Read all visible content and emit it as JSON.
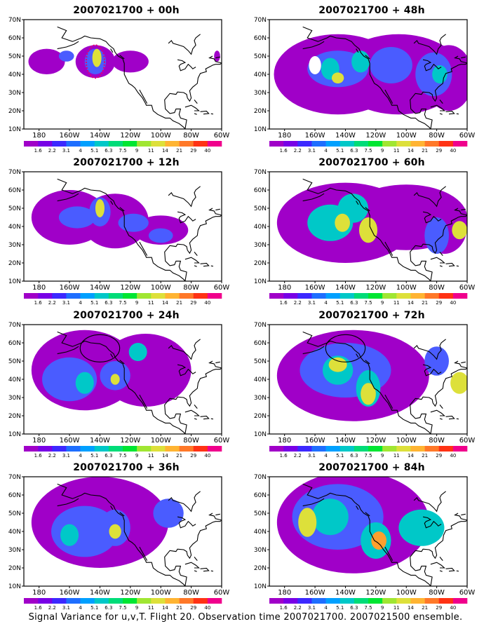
{
  "panels": [
    {
      "title": "2007021700 + 00h",
      "col": 0,
      "row": 0,
      "blobs": [
        [
          -175,
          47,
          12,
          7,
          "#a000c8"
        ],
        [
          -162,
          50,
          5,
          3,
          "#4a5cff"
        ],
        [
          -143,
          47,
          13,
          9,
          "#a000c8"
        ],
        [
          -143,
          47,
          7,
          7,
          "#4a5cff"
        ],
        [
          -142,
          49,
          3,
          5,
          "#dde03a"
        ],
        [
          -120,
          47,
          12,
          6,
          "#a000c8"
        ],
        [
          -63,
          50,
          2,
          3,
          "#a000c8"
        ]
      ],
      "marker": "dotted-ellipse"
    },
    {
      "title": "2007021700 + 48h",
      "col": 1,
      "row": 0,
      "blobs": [
        [
          -145,
          40,
          42,
          22,
          "#a000c8"
        ],
        [
          -105,
          40,
          42,
          22,
          "#a000c8"
        ],
        [
          -72,
          38,
          16,
          18,
          "#a000c8"
        ],
        [
          -145,
          43,
          20,
          10,
          "#4a5cff"
        ],
        [
          -150,
          43,
          6,
          6,
          "#00c8c8"
        ],
        [
          -130,
          47,
          6,
          6,
          "#00c8c8"
        ],
        [
          -110,
          45,
          14,
          10,
          "#4a5cff"
        ],
        [
          -82,
          40,
          12,
          12,
          "#4a5cff"
        ],
        [
          -78,
          40,
          5,
          5,
          "#00c8c8"
        ],
        [
          -160,
          45,
          4,
          5,
          "#ffffff"
        ],
        [
          -145,
          38,
          4,
          3,
          "#dde03a"
        ]
      ]
    },
    {
      "title": "2007021700 + 12h",
      "col": 0,
      "row": 1,
      "blobs": [
        [
          -160,
          45,
          25,
          15,
          "#a000c8"
        ],
        [
          -130,
          43,
          22,
          15,
          "#a000c8"
        ],
        [
          -100,
          38,
          18,
          8,
          "#a000c8"
        ],
        [
          -155,
          45,
          12,
          6,
          "#4a5cff"
        ],
        [
          -140,
          48,
          7,
          8,
          "#4a5cff"
        ],
        [
          -140,
          50,
          3,
          5,
          "#dde03a"
        ],
        [
          -118,
          42,
          10,
          5,
          "#4a5cff"
        ],
        [
          -100,
          35,
          8,
          4,
          "#4a5cff"
        ]
      ]
    },
    {
      "title": "2007021700 + 60h",
      "col": 1,
      "row": 1,
      "blobs": [
        [
          -140,
          42,
          45,
          22,
          "#a000c8"
        ],
        [
          -100,
          45,
          40,
          18,
          "#a000c8"
        ],
        [
          -75,
          40,
          15,
          15,
          "#a000c8"
        ],
        [
          -150,
          42,
          15,
          10,
          "#00c8c8"
        ],
        [
          -135,
          50,
          10,
          8,
          "#00c8c8"
        ],
        [
          -142,
          42,
          5,
          5,
          "#dde03a"
        ],
        [
          -125,
          38,
          6,
          7,
          "#dde03a"
        ],
        [
          -80,
          35,
          8,
          10,
          "#4a5cff"
        ],
        [
          -65,
          38,
          5,
          5,
          "#dde03a"
        ]
      ]
    },
    {
      "title": "2007021700 + 24h",
      "col": 0,
      "row": 2,
      "blobs": [
        [
          -150,
          45,
          35,
          22,
          "#a000c8"
        ],
        [
          -110,
          45,
          30,
          20,
          "#a000c8"
        ],
        [
          -160,
          40,
          18,
          12,
          "#4a5cff"
        ],
        [
          -150,
          38,
          6,
          6,
          "#00c8c8"
        ],
        [
          -130,
          42,
          10,
          8,
          "#4a5cff"
        ],
        [
          -130,
          40,
          3,
          3,
          "#dde03a"
        ],
        [
          -115,
          55,
          6,
          5,
          "#00c8c8"
        ]
      ],
      "marker": "ellipse"
    },
    {
      "title": "2007021700 + 72h",
      "col": 1,
      "row": 2,
      "blobs": [
        [
          -135,
          42,
          50,
          25,
          "#a000c8"
        ],
        [
          -140,
          45,
          30,
          15,
          "#4a5cff"
        ],
        [
          -145,
          45,
          10,
          8,
          "#00c8c8"
        ],
        [
          -145,
          48,
          6,
          4,
          "#dde03a"
        ],
        [
          -125,
          35,
          8,
          10,
          "#00c8c8"
        ],
        [
          -125,
          32,
          5,
          6,
          "#dde03a"
        ],
        [
          -65,
          38,
          6,
          6,
          "#dde03a"
        ],
        [
          -80,
          50,
          8,
          8,
          "#4a5cff"
        ]
      ],
      "marker": "ellipse"
    },
    {
      "title": "2007021700 + 36h",
      "col": 0,
      "row": 3,
      "blobs": [
        [
          -140,
          45,
          45,
          25,
          "#a000c8"
        ],
        [
          -150,
          40,
          22,
          14,
          "#4a5cff"
        ],
        [
          -160,
          38,
          6,
          6,
          "#00c8c8"
        ],
        [
          -130,
          42,
          10,
          10,
          "#4a5cff"
        ],
        [
          -130,
          40,
          4,
          4,
          "#dde03a"
        ],
        [
          -95,
          50,
          10,
          8,
          "#4a5cff"
        ]
      ]
    },
    {
      "title": "2007021700 + 84h",
      "col": 1,
      "row": 3,
      "blobs": [
        [
          -135,
          45,
          50,
          28,
          "#a000c8"
        ],
        [
          -145,
          48,
          30,
          18,
          "#4a5cff"
        ],
        [
          -150,
          48,
          12,
          10,
          "#00c8c8"
        ],
        [
          -165,
          45,
          6,
          8,
          "#dde03a"
        ],
        [
          -120,
          35,
          10,
          10,
          "#00c8c8"
        ],
        [
          -118,
          35,
          5,
          5,
          "#ff9f2e"
        ],
        [
          -90,
          42,
          15,
          10,
          "#00c8c8"
        ]
      ]
    }
  ],
  "axes": {
    "lat_labels": [
      "70N",
      "60N",
      "50N",
      "40N",
      "30N",
      "20N",
      "10N"
    ],
    "lon_labels": [
      "180",
      "160W",
      "140W",
      "120W",
      "100W",
      "80W",
      "60W"
    ],
    "lat_values": [
      70,
      60,
      50,
      40,
      30,
      20,
      10
    ],
    "lon_values": [
      -180,
      -160,
      -140,
      -120,
      -100,
      -80,
      -60
    ],
    "lat_range": [
      10,
      70
    ],
    "lon_range": [
      -190,
      -60
    ]
  },
  "legend": {
    "labels": [
      "1.6",
      "2.2",
      "3.1",
      "4",
      "5.1",
      "6.3",
      "7.5",
      "9",
      "11",
      "14",
      "21",
      "29",
      "40"
    ],
    "colors": [
      "#a000c8",
      "#7800e6",
      "#3c28ff",
      "#1e6eff",
      "#00a0ff",
      "#00c8c8",
      "#00dc78",
      "#00e632",
      "#a0e632",
      "#dde03a",
      "#ffb432",
      "#ff7828",
      "#ff3214",
      "#f0008c"
    ]
  },
  "footer": "Signal Variance for u,v,T. Flight 20. Observation time 2007021700. 2007021500 ensemble."
}
